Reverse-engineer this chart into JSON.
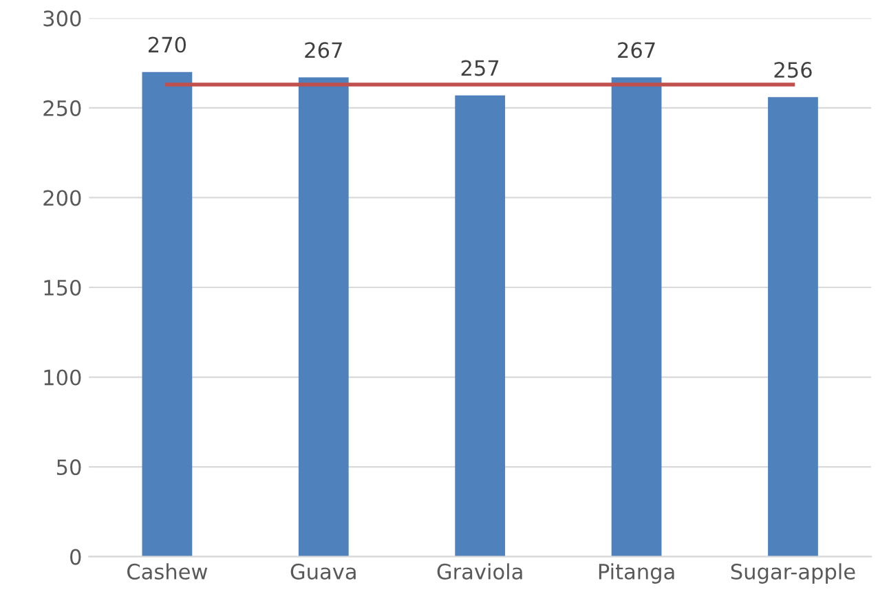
{
  "chart_data": {
    "type": "bar",
    "categories": [
      "Cashew",
      "Guava",
      "Graviola",
      "Pitanga",
      "Sugar-apple"
    ],
    "series": [
      {
        "color": "#4f81bd",
        "values": [
          270,
          267,
          257,
          267,
          256
        ],
        "value_labels": [
          "270",
          "267",
          "257",
          "267",
          "256"
        ]
      },
      {
        "type": "line",
        "color": "#c0504d",
        "values": [
          263,
          263,
          263,
          263,
          263
        ]
      }
    ],
    "ylim": [
      0,
      300
    ],
    "yticks": [
      0,
      50,
      100,
      150,
      200,
      250,
      300
    ],
    "grid": "y",
    "legend": false,
    "marker": "none",
    "line_style": "solid"
  }
}
